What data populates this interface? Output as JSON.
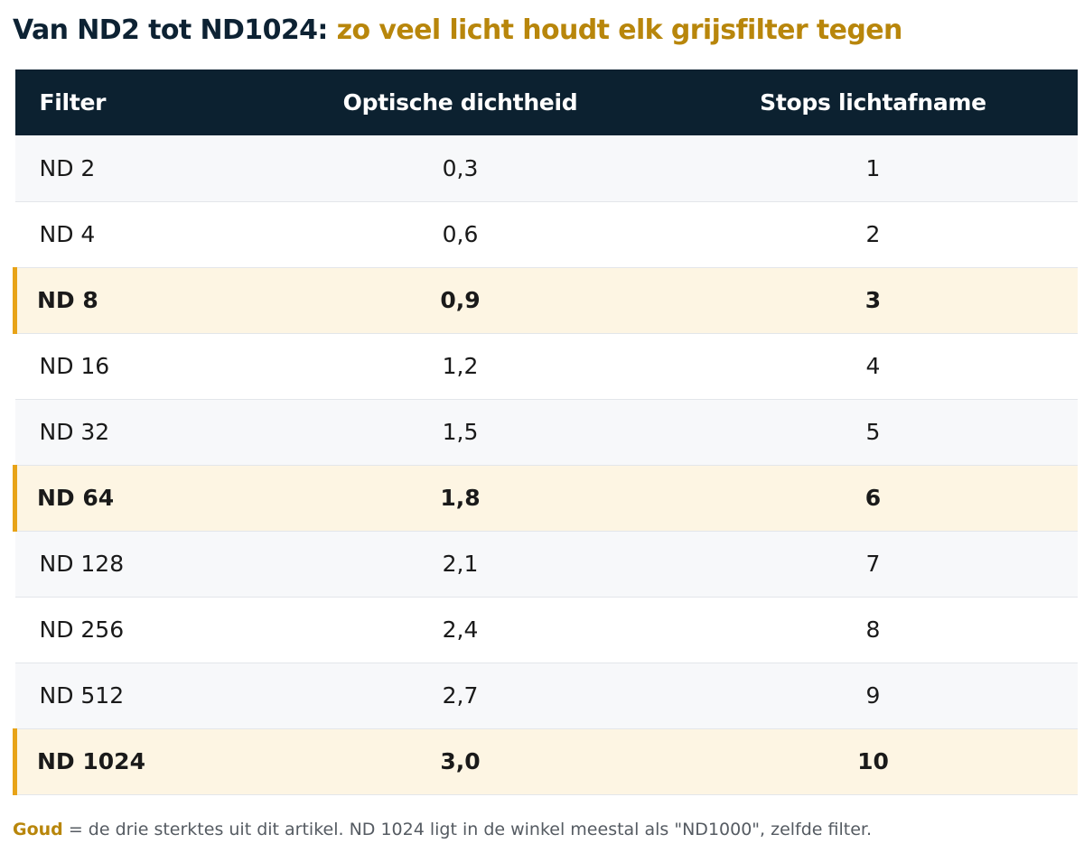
{
  "title": {
    "main": "Van ND2 tot ND1024:",
    "accent": "zo veel licht houdt elk grijsfilter tegen"
  },
  "table": {
    "headers": [
      "Filter",
      "Optische dichtheid",
      "Stops lichtafname"
    ],
    "rows": [
      {
        "filter": "ND 2",
        "density": "0,3",
        "stops": "1",
        "highlight": false
      },
      {
        "filter": "ND 4",
        "density": "0,6",
        "stops": "2",
        "highlight": false
      },
      {
        "filter": "ND 8",
        "density": "0,9",
        "stops": "3",
        "highlight": true
      },
      {
        "filter": "ND 16",
        "density": "1,2",
        "stops": "4",
        "highlight": false
      },
      {
        "filter": "ND 32",
        "density": "1,5",
        "stops": "5",
        "highlight": false
      },
      {
        "filter": "ND 64",
        "density": "1,8",
        "stops": "6",
        "highlight": true
      },
      {
        "filter": "ND 128",
        "density": "2,1",
        "stops": "7",
        "highlight": false
      },
      {
        "filter": "ND 256",
        "density": "2,4",
        "stops": "8",
        "highlight": false
      },
      {
        "filter": "ND 512",
        "density": "2,7",
        "stops": "9",
        "highlight": false
      },
      {
        "filter": "ND 1024",
        "density": "3,0",
        "stops": "10",
        "highlight": true
      }
    ]
  },
  "note": {
    "key": "Goud",
    "text": " = de drie sterktes uit dit artikel. ND 1024 ligt in de winkel meestal als \"ND1000\", zelfde filter."
  },
  "colors": {
    "header_bg": "#0c2130",
    "accent_gold": "#b8860b",
    "highlight_bar": "#e8a317",
    "highlight_bg": "#fdf5e3",
    "alt_row_bg": "#f7f8fa"
  }
}
